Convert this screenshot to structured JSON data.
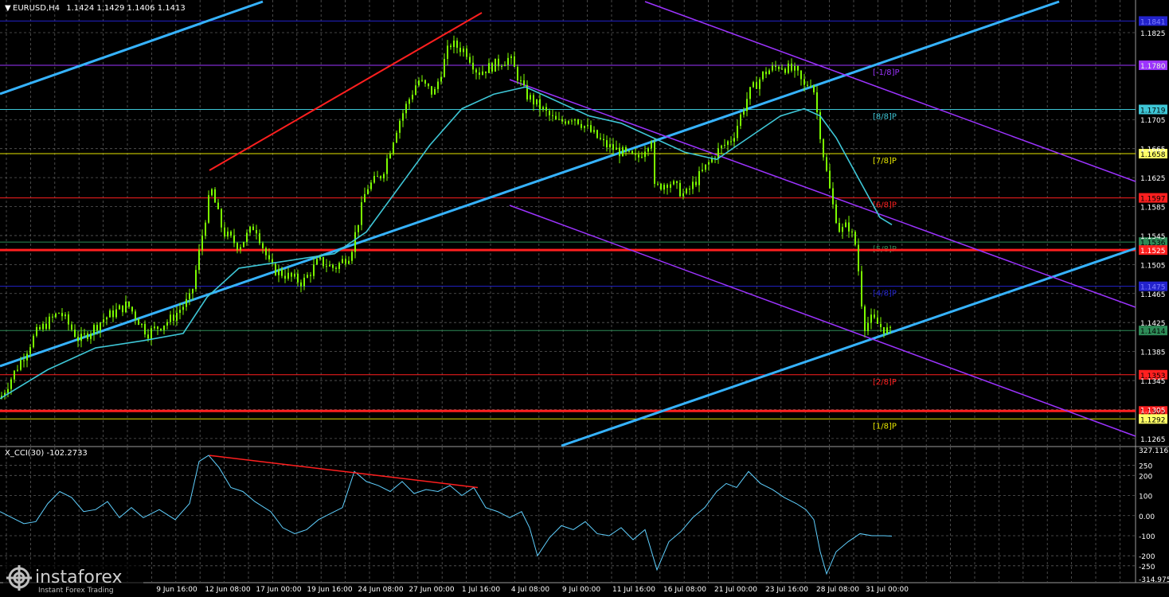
{
  "window": {
    "title_symbol": "EURUSD,H4",
    "title_prices": "1.1424 1.1429 1.1406 1.1413"
  },
  "indicator": {
    "label": "X_CCI(30) -102.2733"
  },
  "watermark": {
    "brand": "instaforex",
    "tagline": "Instant Forex Trading"
  },
  "colors": {
    "background": "#000000",
    "grid": "#5a5a5a",
    "candle": "#7cfc00",
    "ma": "#3ec6d6",
    "channel": "#36b3ff",
    "purple": "#9c33ff",
    "red": "#ff1f1f",
    "cci": "#5fd0ff"
  },
  "chart_data": {
    "type": "candlestick",
    "symbol": "EURUSD",
    "timeframe": "H4",
    "ohlc_last": {
      "open": 1.1424,
      "high": 1.1429,
      "low": 1.1406,
      "close": 1.1413
    },
    "yticks": [
      "1.1825",
      "1.1780",
      "1.1705",
      "1.1665",
      "1.1625",
      "1.1585",
      "1.1545",
      "1.1505",
      "1.1465",
      "1.1425",
      "1.1385",
      "1.1345",
      "1.1305",
      "1.1265"
    ],
    "xticks": [
      "9 Jun 16:00",
      "12 Jun 08:00",
      "17 Jun 00:00",
      "19 Jun 16:00",
      "24 Jun 08:00",
      "27 Jun 00:00",
      "1 Jul 16:00",
      "4 Jul 08:00",
      "9 Jul 00:00",
      "11 Jul 16:00",
      "16 Jul 08:00",
      "21 Jul 00:00",
      "23 Jul 16:00",
      "28 Jul 08:00",
      "31 Jul 00:00"
    ],
    "ylim": [
      1.1255,
      1.187
    ],
    "close_path": [
      [
        0,
        1.132
      ],
      [
        20,
        1.136
      ],
      [
        45,
        1.141
      ],
      [
        75,
        1.144
      ],
      [
        100,
        1.14
      ],
      [
        130,
        1.143
      ],
      [
        160,
        1.145
      ],
      [
        185,
        1.141
      ],
      [
        215,
        1.143
      ],
      [
        240,
        1.146
      ],
      [
        258,
        1.157
      ],
      [
        265,
        1.161
      ],
      [
        280,
        1.155
      ],
      [
        300,
        1.153
      ],
      [
        320,
        1.156
      ],
      [
        340,
        1.15
      ],
      [
        360,
        1.149
      ],
      [
        380,
        1.148
      ],
      [
        400,
        1.151
      ],
      [
        420,
        1.15
      ],
      [
        440,
        1.152
      ],
      [
        460,
        1.161
      ],
      [
        480,
        1.163
      ],
      [
        500,
        1.17
      ],
      [
        525,
        1.176
      ],
      [
        545,
        1.174
      ],
      [
        565,
        1.181
      ],
      [
        585,
        1.18
      ],
      [
        600,
        1.177
      ],
      [
        620,
        1.178
      ],
      [
        640,
        1.179
      ],
      [
        660,
        1.174
      ],
      [
        680,
        1.172
      ],
      [
        700,
        1.17
      ],
      [
        720,
        1.171
      ],
      [
        740,
        1.169
      ],
      [
        760,
        1.167
      ],
      [
        780,
        1.166
      ],
      [
        800,
        1.165
      ],
      [
        818,
        1.168
      ],
      [
        822,
        1.161
      ],
      [
        840,
        1.162
      ],
      [
        860,
        1.16
      ],
      [
        880,
        1.163
      ],
      [
        900,
        1.166
      ],
      [
        920,
        1.168
      ],
      [
        940,
        1.174
      ],
      [
        960,
        1.177
      ],
      [
        980,
        1.178
      ],
      [
        1000,
        1.177
      ],
      [
        1010,
        1.175
      ],
      [
        1020,
        1.176
      ],
      [
        1028,
        1.17
      ],
      [
        1035,
        1.165
      ],
      [
        1045,
        1.159
      ],
      [
        1055,
        1.155
      ],
      [
        1065,
        1.156
      ],
      [
        1075,
        1.153
      ],
      [
        1085,
        1.142
      ],
      [
        1095,
        1.143
      ],
      [
        1105,
        1.142
      ],
      [
        1120,
        1.141
      ]
    ],
    "ma_path": [
      [
        0,
        1.132
      ],
      [
        60,
        1.136
      ],
      [
        120,
        1.139
      ],
      [
        180,
        1.14
      ],
      [
        230,
        1.141
      ],
      [
        260,
        1.146
      ],
      [
        300,
        1.15
      ],
      [
        360,
        1.151
      ],
      [
        420,
        1.152
      ],
      [
        460,
        1.155
      ],
      [
        500,
        1.161
      ],
      [
        540,
        1.167
      ],
      [
        580,
        1.172
      ],
      [
        620,
        1.174
      ],
      [
        660,
        1.175
      ],
      [
        700,
        1.173
      ],
      [
        740,
        1.171
      ],
      [
        780,
        1.17
      ],
      [
        820,
        1.168
      ],
      [
        860,
        1.166
      ],
      [
        900,
        1.165
      ],
      [
        940,
        1.168
      ],
      [
        980,
        1.171
      ],
      [
        1010,
        1.172
      ],
      [
        1030,
        1.171
      ],
      [
        1050,
        1.168
      ],
      [
        1070,
        1.164
      ],
      [
        1090,
        1.16
      ],
      [
        1105,
        1.157
      ],
      [
        1120,
        1.156
      ]
    ],
    "levels": [
      {
        "label": "1.1841",
        "value": 1.1841,
        "color": "#2222cc",
        "bg": "#2222cc",
        "fg": "#8080ff",
        "mm": ""
      },
      {
        "label": "1.1780",
        "value": 1.178,
        "color": "#9c33ff",
        "bg": "#9c33ff",
        "fg": "#000000",
        "mm": "[-1/8]P"
      },
      {
        "label": "1.1719",
        "value": 1.1719,
        "color": "#3ec6d6",
        "bg": "#3ec6d6",
        "fg": "#000000",
        "mm": "[8/8]P"
      },
      {
        "label": "1.1658",
        "value": 1.1658,
        "color": "#e6e600",
        "bg": "#ffff66",
        "fg": "#000000",
        "mm": "[7/8]P"
      },
      {
        "label": "1.1597",
        "value": 1.1597,
        "color": "#ff1f1f",
        "bg": "#ff1f1f",
        "fg": "#000000",
        "mm": "[6/8]P"
      },
      {
        "label": "1.1536",
        "value": 1.1536,
        "color": "#2e8b57",
        "bg": "#2e8b57",
        "fg": "#000000",
        "mm": "[5/8]P"
      },
      {
        "label": "1.1525",
        "value": 1.1525,
        "color": "#ff1f1f",
        "bg": "#ff1f1f",
        "fg": "#ffffff",
        "mm": ""
      },
      {
        "label": "1.1475",
        "value": 1.1475,
        "color": "#2222cc",
        "bg": "#2222cc",
        "fg": "#8080ff",
        "mm": "[4/8]P"
      },
      {
        "label": "1.1414",
        "value": 1.1414,
        "color": "#2e8b57",
        "bg": "#2e8b57",
        "fg": "#000000",
        "mm": ""
      },
      {
        "label": "1.1353",
        "value": 1.1353,
        "color": "#ff1f1f",
        "bg": "#ff1f1f",
        "fg": "#000000",
        "mm": "[2/8]P"
      },
      {
        "label": "1.1303",
        "value": 1.1303,
        "color": "#ff1f1f",
        "bg": "#ff1f1f",
        "fg": "#000000",
        "mm": ""
      },
      {
        "label": "1.1292",
        "value": 1.1292,
        "color": "#e6e600",
        "bg": "#ffff66",
        "fg": "#000000",
        "mm": "[1/8]P"
      }
    ],
    "cci": {
      "yticks": [
        "327.116",
        "250",
        "200",
        "100",
        "0.00",
        "-100",
        "-200",
        "-250",
        "-314.975"
      ],
      "ylim": [
        -330,
        340
      ],
      "values": [
        [
          0,
          20
        ],
        [
          15,
          -10
        ],
        [
          30,
          -40
        ],
        [
          45,
          -30
        ],
        [
          60,
          60
        ],
        [
          75,
          120
        ],
        [
          90,
          90
        ],
        [
          105,
          20
        ],
        [
          120,
          30
        ],
        [
          135,
          70
        ],
        [
          150,
          -10
        ],
        [
          165,
          40
        ],
        [
          180,
          -10
        ],
        [
          200,
          30
        ],
        [
          220,
          -20
        ],
        [
          238,
          60
        ],
        [
          250,
          270
        ],
        [
          262,
          300
        ],
        [
          275,
          240
        ],
        [
          290,
          140
        ],
        [
          305,
          120
        ],
        [
          320,
          70
        ],
        [
          340,
          20
        ],
        [
          355,
          -60
        ],
        [
          370,
          -90
        ],
        [
          385,
          -70
        ],
        [
          400,
          -20
        ],
        [
          415,
          10
        ],
        [
          430,
          40
        ],
        [
          445,
          220
        ],
        [
          460,
          170
        ],
        [
          475,
          150
        ],
        [
          490,
          120
        ],
        [
          505,
          170
        ],
        [
          520,
          110
        ],
        [
          535,
          130
        ],
        [
          550,
          120
        ],
        [
          565,
          150
        ],
        [
          580,
          100
        ],
        [
          595,
          140
        ],
        [
          610,
          40
        ],
        [
          625,
          20
        ],
        [
          640,
          -10
        ],
        [
          655,
          20
        ],
        [
          665,
          -60
        ],
        [
          675,
          -200
        ],
        [
          690,
          -110
        ],
        [
          705,
          -50
        ],
        [
          720,
          -70
        ],
        [
          735,
          -30
        ],
        [
          750,
          -90
        ],
        [
          765,
          -100
        ],
        [
          780,
          -60
        ],
        [
          795,
          -120
        ],
        [
          810,
          -70
        ],
        [
          825,
          -270
        ],
        [
          840,
          -130
        ],
        [
          855,
          -80
        ],
        [
          870,
          -10
        ],
        [
          885,
          40
        ],
        [
          900,
          120
        ],
        [
          912,
          160
        ],
        [
          925,
          140
        ],
        [
          940,
          220
        ],
        [
          955,
          160
        ],
        [
          970,
          130
        ],
        [
          985,
          90
        ],
        [
          1000,
          60
        ],
        [
          1012,
          30
        ],
        [
          1022,
          -20
        ],
        [
          1030,
          -180
        ],
        [
          1038,
          -290
        ],
        [
          1050,
          -180
        ],
        [
          1065,
          -130
        ],
        [
          1080,
          -90
        ],
        [
          1095,
          -100
        ],
        [
          1110,
          -100
        ],
        [
          1120,
          -102
        ]
      ]
    }
  }
}
